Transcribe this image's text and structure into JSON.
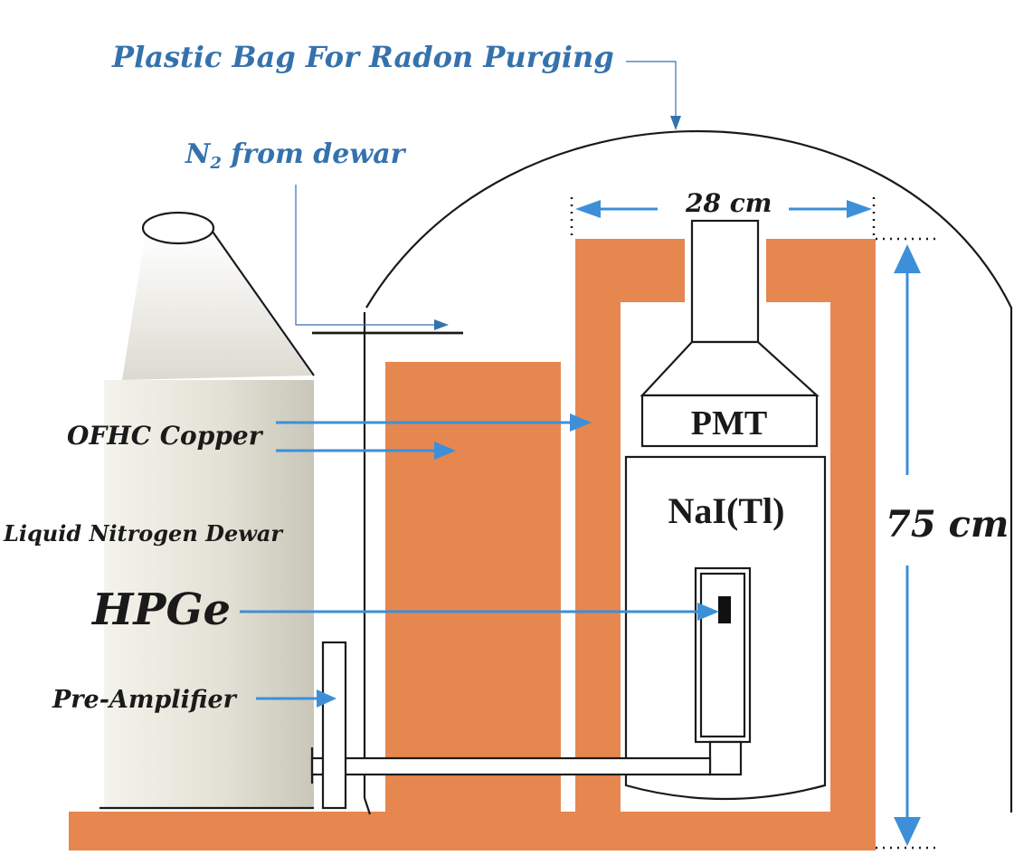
{
  "labels": {
    "bag": "Plastic Bag For Radon Purging",
    "n2_main": "N",
    "n2_sub": "2",
    "n2_rest": " from dewar",
    "width_dim": "28 cm",
    "height_dim": "75 cm",
    "ofhc": "OFHC Copper",
    "dewar": "Liquid Nitrogen Dewar",
    "hpge": "HPGe",
    "preamp": "Pre-Amplifier",
    "pmt": "PMT",
    "nai": "NaI(Tl)"
  },
  "colors": {
    "copper": "#e6874f",
    "arrow": "#3d8fd8",
    "label_blue": "#3572ad"
  }
}
